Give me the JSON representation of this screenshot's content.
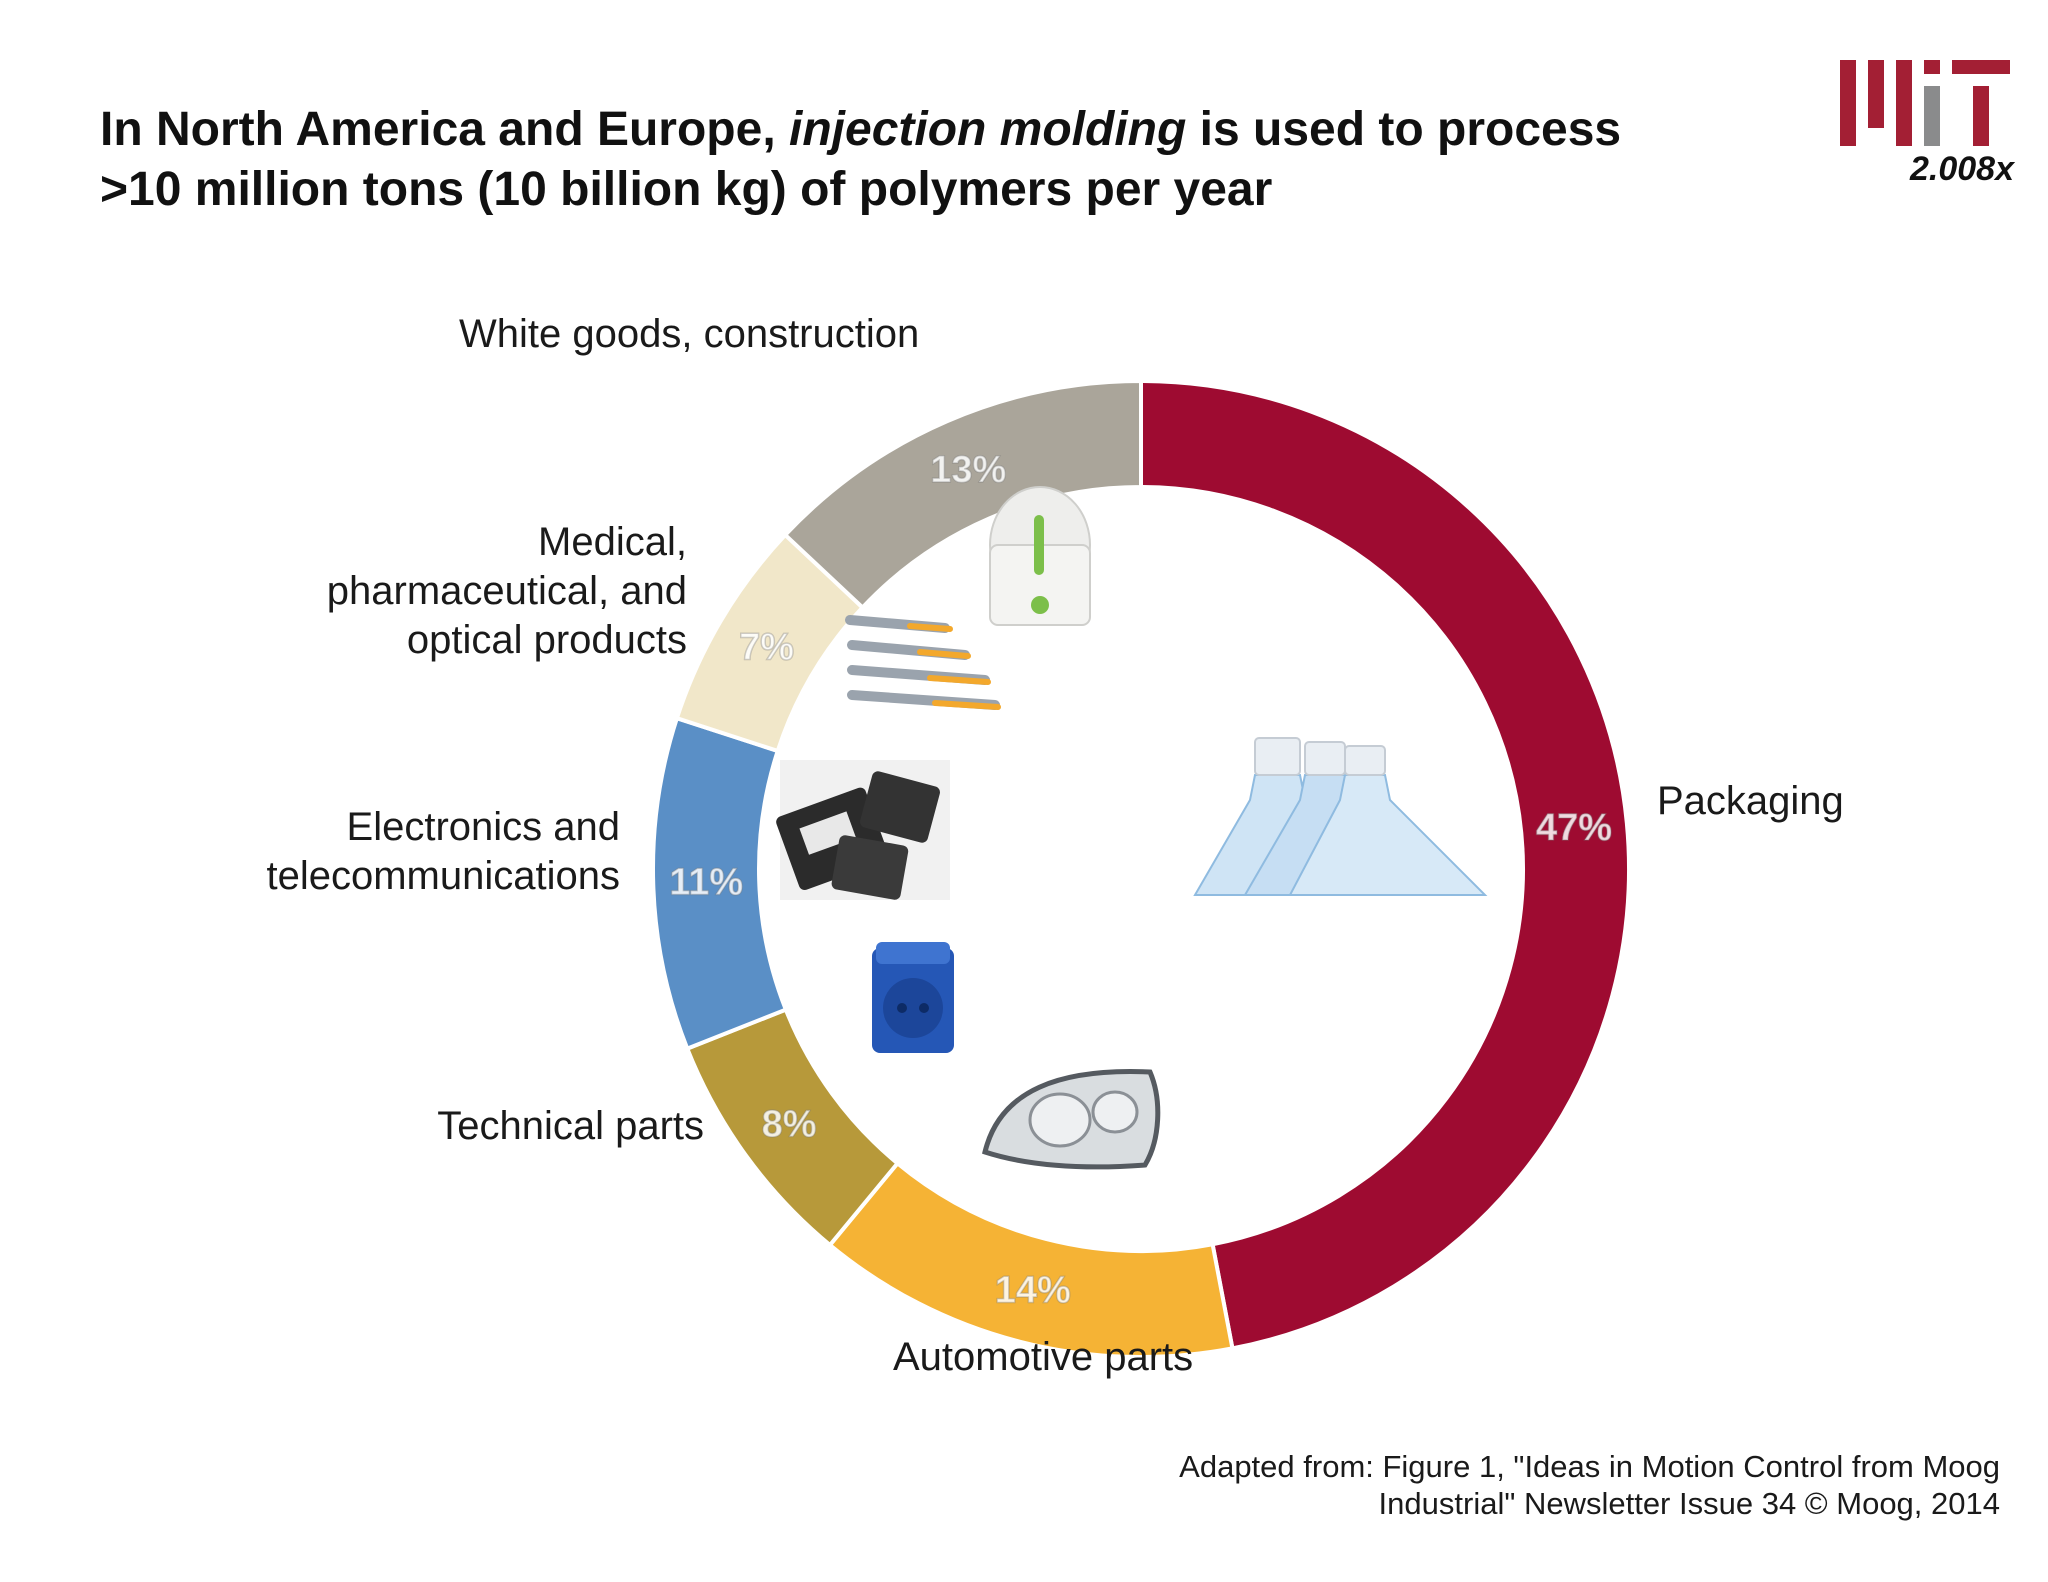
{
  "header": {
    "title_part1": "In North America and Europe, ",
    "title_emph": "injection molding",
    "title_part2": " is used to process >10 million tons (10 billion kg) of polymers per year"
  },
  "logo": {
    "caption": "2.008x"
  },
  "chart_data": {
    "type": "pie",
    "style": "donut",
    "title": "In North America and Europe, injection molding is used to process >10 million tons (10 billion kg) of polymers per year",
    "categories": [
      "Packaging",
      "Automotive parts",
      "Technical parts",
      "Electronics and telecommunications",
      "Medical, pharmaceutical, and optical products",
      "White goods, construction"
    ],
    "values": [
      47,
      14,
      8,
      11,
      7,
      13
    ],
    "value_labels": [
      "47%",
      "14%",
      "8%",
      "11%",
      "7%",
      "13%"
    ],
    "colors": [
      "#9e0b31",
      "#f5b335",
      "#b7993a",
      "#5a8fc6",
      "#f1e7c9",
      "#aaa59a"
    ],
    "labels": {
      "packaging": "Packaging",
      "automotive": "Automotive parts",
      "technical": "Technical parts",
      "electronics_line1": "Electronics and",
      "electronics_line2": "telecommunications",
      "medical_line1": "Medical,",
      "medical_line2": "pharmaceutical, and",
      "medical_line3": "optical products",
      "white_goods": "White goods, construction"
    }
  },
  "footer": {
    "credit_line1": "Adapted from: Figure 1, \"Ideas in Motion Control from Moog",
    "credit_line2": "Industrial\" Newsletter Issue 34 © Moog, 2014"
  }
}
